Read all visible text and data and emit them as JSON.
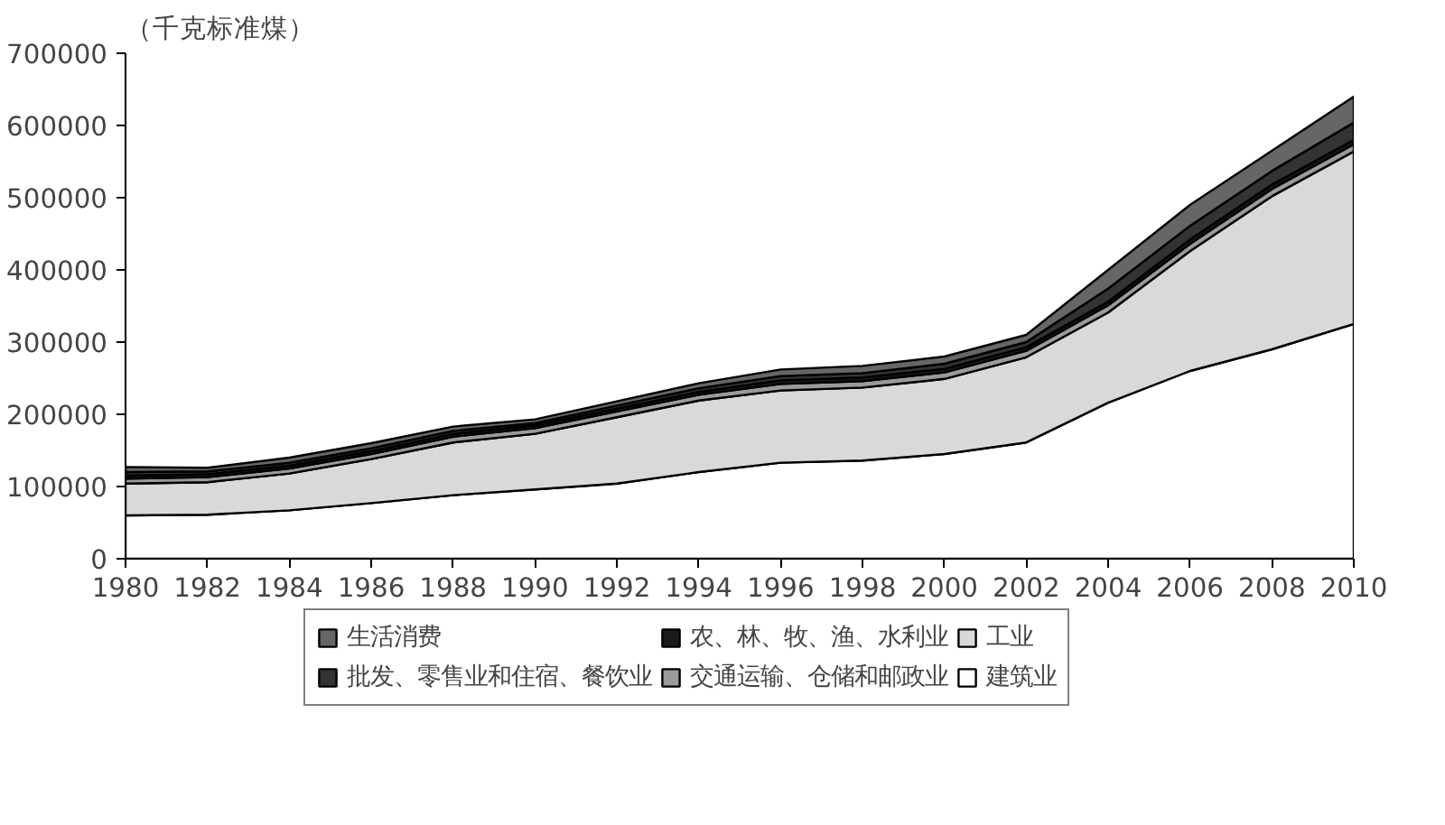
{
  "chart_data": {
    "type": "area",
    "stacked": true,
    "ylabel": "（千克标准煤）",
    "x": [
      1980,
      1982,
      1984,
      1986,
      1988,
      1990,
      1992,
      1994,
      1996,
      1998,
      2000,
      2002,
      2004,
      2006,
      2008,
      2010
    ],
    "xlim": [
      1980,
      2010
    ],
    "xticks": [
      1980,
      1982,
      1984,
      1986,
      1988,
      1990,
      1992,
      1994,
      1996,
      1998,
      2000,
      2002,
      2004,
      2006,
      2008,
      2010
    ],
    "ylim": [
      0,
      700000
    ],
    "yticks": [
      0,
      100000,
      200000,
      300000,
      400000,
      500000,
      600000,
      700000
    ],
    "grid": false,
    "legend": "bottom",
    "series": [
      {
        "name": "建筑业",
        "color": "#ffffff",
        "values": [
          60000,
          61000,
          67000,
          77000,
          88000,
          96000,
          104000,
          120000,
          133000,
          136000,
          145000,
          161000,
          216000,
          260000,
          290000,
          325000
        ]
      },
      {
        "name": "工业",
        "color": "#d9d9d9",
        "values": [
          44000,
          45000,
          51000,
          61000,
          73000,
          77000,
          92000,
          99000,
          100000,
          101000,
          104000,
          118000,
          125000,
          166000,
          212000,
          239000
        ]
      },
      {
        "name": "交通运输、仓储和邮政业",
        "color": "#9a9a9a",
        "values": [
          7000,
          7000,
          7000,
          7000,
          8000,
          8000,
          8000,
          8000,
          9000,
          9000,
          9000,
          9000,
          10000,
          10000,
          10000,
          10000
        ]
      },
      {
        "name": "农、林、牧、渔、水利业",
        "color": "#1a1a1a",
        "values": [
          4000,
          4000,
          4000,
          4000,
          4000,
          4000,
          4000,
          4000,
          5000,
          5000,
          5000,
          5000,
          5000,
          6000,
          6000,
          6000
        ]
      },
      {
        "name": "批发、零售业和住宿、餐饮业",
        "color": "#333333",
        "values": [
          5000,
          4000,
          4000,
          4000,
          4000,
          3000,
          4000,
          5000,
          6000,
          6000,
          7000,
          7000,
          18000,
          19000,
          19000,
          24000
        ]
      },
      {
        "name": "生活消费",
        "color": "#666666",
        "values": [
          7000,
          5000,
          7000,
          7000,
          6000,
          5000,
          6000,
          7000,
          9000,
          10000,
          10000,
          10000,
          26000,
          29000,
          28000,
          36000
        ]
      }
    ]
  }
}
